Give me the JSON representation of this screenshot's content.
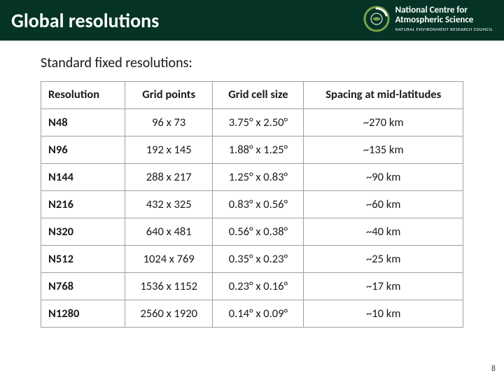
{
  "header": {
    "title": "Global resolutions",
    "logo": {
      "line1": "National Centre for",
      "line2": "Atmospheric Science",
      "line3": "NATURAL ENVIRONMENT RESEARCH COUNCIL",
      "ring_color": "#7fa04a",
      "bg_color": "#053427"
    }
  },
  "subtitle": "Standard fixed resolutions:",
  "table": {
    "columns": [
      "Resolution",
      "Grid points",
      "Grid cell size",
      "Spacing at mid-latitudes"
    ],
    "rows": [
      [
        "N48",
        "96 x 73",
        "3.75° x 2.50°",
        "~270 km"
      ],
      [
        "N96",
        "192 x 145",
        "1.88° x 1.25°",
        "~135 km"
      ],
      [
        "N144",
        "288 x 217",
        "1.25° x 0.83°",
        "~90 km"
      ],
      [
        "N216",
        "432 x 325",
        "0.83° x 0.56°",
        "~60 km"
      ],
      [
        "N320",
        "640 x 481",
        "0.56° x 0.38°",
        "~40 km"
      ],
      [
        "N512",
        "1024 x 769",
        "0.35° x 0.23°",
        "~25 km"
      ],
      [
        "N768",
        "1536 x 1152",
        "0.23° x 0.16°",
        "~17 km"
      ],
      [
        "N1280",
        "2560 x 1920",
        "0.14° x 0.09°",
        "~10 km"
      ]
    ],
    "border_color": "#a0a0a0",
    "fontsize": 16.5
  },
  "page_number": "8"
}
